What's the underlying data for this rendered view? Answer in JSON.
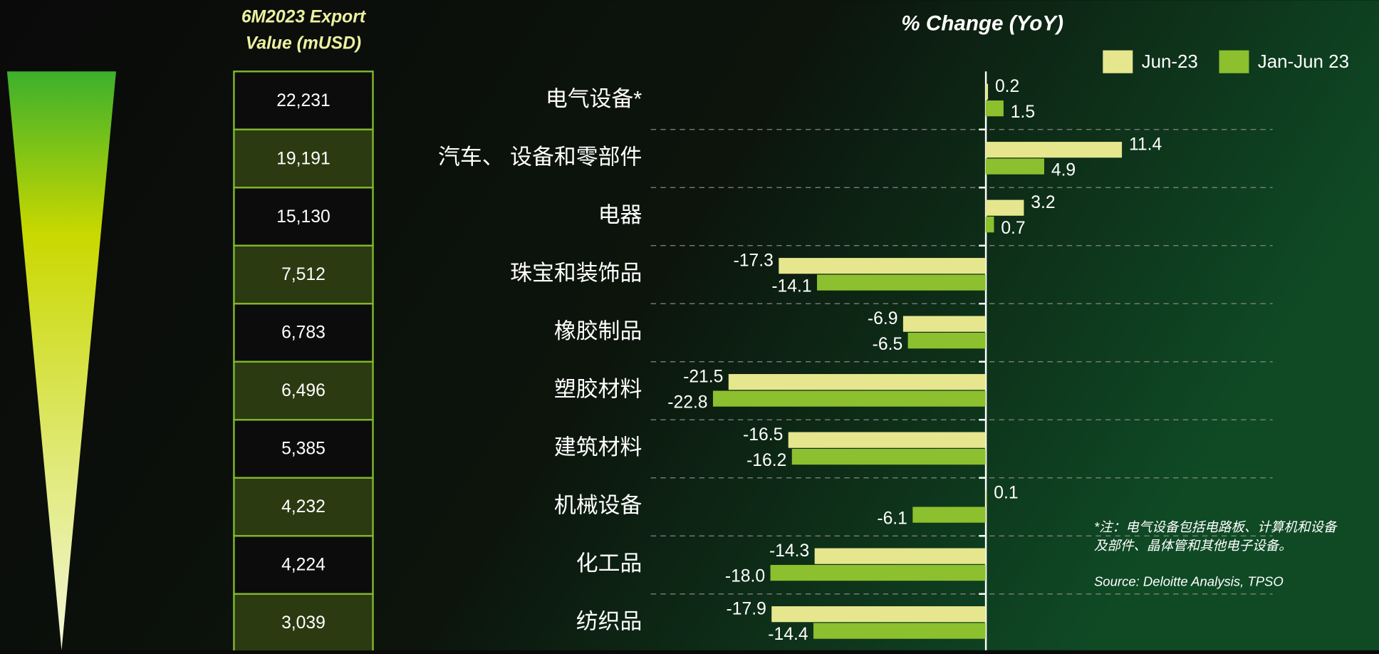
{
  "chart_data": {
    "type": "hbar",
    "title": "% Change (YoY)",
    "categories": [
      "电气设备*",
      "汽车、 设备和零部件",
      "电器",
      "珠宝和装饰品",
      "橡胶制品",
      "塑胶材料",
      "建筑材料",
      "机械设备",
      "化工品",
      "纺织品"
    ],
    "series": [
      {
        "name": "Jun-23",
        "color": "#e6e68e",
        "values": [
          0.2,
          11.4,
          3.2,
          -17.3,
          -6.9,
          -21.5,
          -16.5,
          0.1,
          -14.3,
          -17.9
        ],
        "value_labels": [
          "0.2",
          "11.4",
          "3.2",
          "-17.3",
          "-6.9",
          "-21.5",
          "-16.5",
          "0.1",
          "-14.3",
          "-17.9"
        ]
      },
      {
        "name": "Jan-Jun 23",
        "color": "#8cc02e",
        "values": [
          1.5,
          4.9,
          0.7,
          -14.1,
          -6.5,
          -22.8,
          -16.2,
          -6.1,
          -18.0,
          -14.4
        ],
        "value_labels": [
          "1.5",
          "4.9",
          "0.7",
          "-14.1",
          "-6.5",
          "-22.8",
          "-16.2",
          "-6.1",
          "-18.0",
          "-14.4"
        ]
      }
    ],
    "xlim": [
      -28,
      24
    ],
    "legend": "top-right",
    "export_table": {
      "header": [
        "6M2023 Export",
        "Value (mUSD)"
      ],
      "rows": [
        "22,231",
        "19,191",
        "15,130",
        "7,512",
        "6,783",
        "6,496",
        "5,385",
        "4,232",
        "4,224",
        "3,039"
      ]
    },
    "note": [
      "*注：电气设备包括电路板、计算机和设备",
      "及部件、晶体管和其他电子设备。"
    ],
    "source": "Source: Deloitte Analysis, TPSO"
  }
}
